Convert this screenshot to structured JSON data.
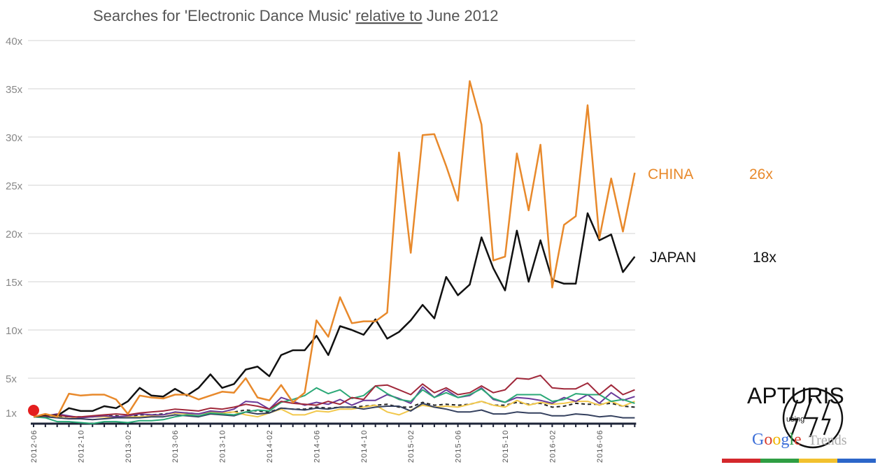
{
  "chart_data": {
    "type": "line",
    "title_parts": [
      "Searches for 'Electronic Dance Music' ",
      "relative to",
      " June 2012"
    ],
    "xlabel": "",
    "ylabel": "",
    "ylim": [
      0,
      40
    ],
    "y_ticks": [
      {
        "value": 40,
        "label": "40x"
      },
      {
        "value": 35,
        "label": "35x"
      },
      {
        "value": 30,
        "label": "30x"
      },
      {
        "value": 25,
        "label": "25x"
      },
      {
        "value": 20,
        "label": "20x"
      },
      {
        "value": 15,
        "label": "15x"
      },
      {
        "value": 10,
        "label": "10x"
      },
      {
        "value": 5,
        "label": "5x"
      },
      {
        "value": 1.45,
        "label": "1x"
      }
    ],
    "grid": true,
    "start_month": "2012-06",
    "x_tick_labels": [
      "2012-06",
      "2012-10",
      "2013-02",
      "2013-06",
      "2013-10",
      "2014-02",
      "2014-06",
      "2014-10",
      "2015-02",
      "2015-06",
      "2015-10",
      "2016-02",
      "2016-06"
    ],
    "series": [
      {
        "name": "CHINA",
        "end_label": "26x",
        "color": "#e8892b",
        "width": 2.5,
        "values": [
          1.0,
          1.3,
          1.0,
          3.4,
          3.2,
          3.3,
          3.3,
          2.8,
          1.3,
          3.2,
          3.0,
          2.9,
          3.3,
          3.3,
          2.8,
          3.2,
          3.6,
          3.5,
          5.0,
          3.0,
          2.7,
          4.3,
          2.5,
          3.5,
          11.0,
          9.3,
          13.4,
          10.7,
          10.9,
          10.9,
          11.8,
          28.4,
          18.0,
          30.2,
          30.3,
          27.0,
          23.4,
          35.8,
          31.3,
          17.2,
          17.6,
          28.3,
          22.4,
          29.2,
          14.4,
          20.9,
          21.8,
          33.3,
          19.5,
          25.7,
          20.2,
          26.3
        ]
      },
      {
        "name": "JAPAN",
        "end_label": "18x",
        "color": "#111111",
        "width": 2.5,
        "values": [
          1.0,
          1.2,
          1.1,
          1.9,
          1.6,
          1.6,
          2.1,
          1.9,
          2.6,
          4.0,
          3.2,
          3.1,
          3.9,
          3.2,
          4.0,
          5.4,
          4.0,
          4.4,
          5.9,
          6.2,
          5.2,
          7.4,
          7.9,
          7.9,
          9.4,
          7.4,
          10.4,
          10.0,
          9.5,
          11.1,
          9.1,
          9.8,
          11.0,
          12.6,
          11.2,
          15.5,
          13.6,
          14.7,
          19.6,
          16.4,
          14.1,
          20.3,
          15.0,
          19.3,
          15.2,
          14.8,
          14.8,
          22.1,
          19.3,
          19.9,
          16.0,
          17.6
        ]
      },
      {
        "color": "#a0283a",
        "width": 2,
        "values": [
          1.0,
          1.1,
          1.2,
          1.0,
          1.0,
          1.1,
          1.2,
          1.3,
          1.2,
          1.4,
          1.5,
          1.6,
          1.8,
          1.7,
          1.6,
          1.9,
          1.8,
          2.0,
          2.3,
          2.1,
          1.8,
          2.6,
          2.4,
          2.3,
          2.2,
          2.6,
          2.3,
          3.0,
          2.8,
          4.2,
          4.3,
          3.8,
          3.3,
          4.4,
          3.5,
          4.0,
          3.3,
          3.5,
          4.2,
          3.5,
          3.8,
          5.0,
          4.9,
          5.3,
          4.0,
          3.9,
          3.9,
          4.5,
          3.3,
          4.3,
          3.3,
          3.8
        ]
      },
      {
        "color": "#2aa876",
        "width": 2,
        "values": [
          1.0,
          0.9,
          0.5,
          0.5,
          0.4,
          0.3,
          0.5,
          0.5,
          0.4,
          0.6,
          0.6,
          0.7,
          1.0,
          1.2,
          1.1,
          1.4,
          1.3,
          1.2,
          1.5,
          1.7,
          1.6,
          2.5,
          2.8,
          3.2,
          4.0,
          3.4,
          3.8,
          2.9,
          3.2,
          4.2,
          3.4,
          2.8,
          2.6,
          3.8,
          3.0,
          3.5,
          3.0,
          3.3,
          3.9,
          2.9,
          2.5,
          3.3,
          3.3,
          3.3,
          2.6,
          2.8,
          3.4,
          3.3,
          3.3,
          2.6,
          2.8,
          2.4
        ]
      },
      {
        "color": "#34405e",
        "width": 2,
        "values": [
          1.0,
          1.0,
          0.9,
          0.8,
          0.8,
          0.7,
          0.8,
          0.9,
          0.9,
          0.9,
          1.0,
          1.0,
          1.2,
          1.1,
          1.0,
          1.3,
          1.2,
          1.1,
          1.5,
          1.3,
          1.4,
          1.9,
          1.8,
          1.7,
          1.9,
          1.8,
          2.0,
          2.0,
          1.8,
          2.0,
          2.1,
          2.1,
          1.6,
          2.4,
          2.0,
          1.8,
          1.5,
          1.5,
          1.7,
          1.3,
          1.3,
          1.5,
          1.4,
          1.4,
          1.1,
          1.1,
          1.3,
          1.2,
          1.0,
          1.1,
          0.9,
          0.9
        ]
      },
      {
        "color": "#6a3a9a",
        "width": 2,
        "values": [
          1.0,
          1.1,
          1.3,
          1.1,
          0.9,
          1.0,
          1.1,
          1.0,
          1.1,
          1.3,
          1.2,
          1.2,
          1.5,
          1.4,
          1.3,
          1.6,
          1.5,
          1.8,
          2.6,
          2.5,
          1.8,
          3.0,
          2.6,
          2.2,
          2.5,
          2.3,
          2.8,
          2.2,
          2.7,
          2.7,
          3.3,
          2.9,
          2.4,
          4.1,
          3.0,
          3.8,
          3.0,
          3.2,
          4.0,
          2.8,
          2.5,
          3.0,
          2.9,
          2.7,
          2.4,
          3.0,
          2.6,
          3.3,
          2.4,
          3.5,
          2.7,
          3.1
        ]
      },
      {
        "color": "#f2c84b",
        "width": 2,
        "values": [
          1.0,
          1.2,
          1.0,
          0.8,
          0.9,
          1.0,
          1.0,
          0.9,
          1.0,
          1.0,
          1.1,
          1.2,
          1.4,
          1.3,
          1.3,
          1.5,
          1.4,
          1.5,
          1.2,
          1.0,
          1.4,
          1.8,
          1.2,
          1.2,
          1.6,
          1.5,
          1.8,
          1.8,
          2.0,
          2.2,
          1.5,
          1.2,
          1.7,
          2.2,
          2.0,
          2.1,
          2.0,
          2.3,
          2.6,
          2.2,
          2.0,
          2.7,
          2.2,
          2.5,
          2.3,
          2.4,
          2.6,
          2.6,
          2.2,
          2.6,
          2.1,
          2.6
        ]
      },
      {
        "color": "#222222",
        "width": 2,
        "dashed": true,
        "values": [
          1.0,
          1.0,
          1.1,
          1.0,
          1.0,
          1.0,
          1.1,
          1.1,
          1.0,
          1.2,
          1.2,
          1.3,
          1.4,
          1.4,
          1.3,
          1.5,
          1.4,
          1.5,
          1.7,
          1.6,
          1.5,
          1.9,
          1.8,
          1.8,
          2.0,
          1.9,
          2.0,
          2.0,
          2.1,
          2.2,
          2.3,
          2.0,
          2.0,
          2.5,
          2.2,
          2.3,
          2.2,
          2.3,
          2.6,
          2.2,
          2.2,
          2.5,
          2.3,
          2.4,
          2.0,
          2.1,
          2.4,
          2.3,
          2.3,
          2.4,
          2.1,
          2.0
        ]
      }
    ]
  },
  "logo": {
    "name": "APTURIS",
    "using": "using",
    "google": [
      "G",
      "o",
      "o",
      "g",
      "l",
      "e"
    ],
    "trends": "Trends",
    "google_colors": [
      "#3d6fd8",
      "#d93a2b",
      "#f0b400",
      "#3d6fd8",
      "#2d9a46",
      "#d93a2b"
    ],
    "bar_colors": [
      "#d4282c",
      "#2f9e43",
      "#f2c12e",
      "#2c66c9"
    ]
  }
}
